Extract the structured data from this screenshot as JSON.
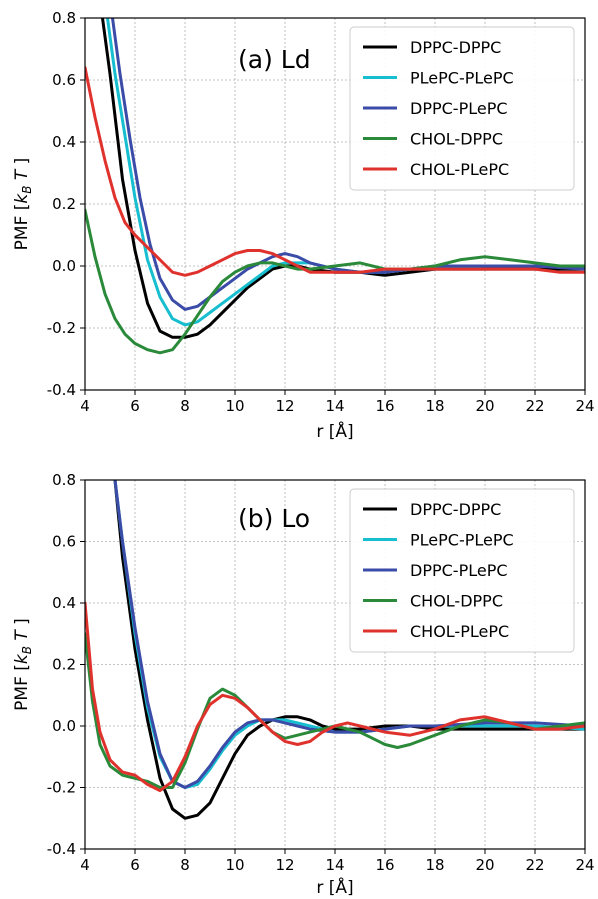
{
  "chart_data": [
    {
      "type": "line",
      "panel_label": "(a) Ld",
      "xlabel": "r [Å]",
      "ylabel": "PMF [k_BT]",
      "xlim": [
        4,
        24
      ],
      "ylim": [
        -0.4,
        0.8
      ],
      "xticks": [
        "4",
        "6",
        "8",
        "10",
        "12",
        "14",
        "16",
        "18",
        "20",
        "22",
        "24"
      ],
      "yticks": [
        "-0.4",
        "-0.2",
        "0.0",
        "0.2",
        "0.4",
        "0.6",
        "0.8"
      ],
      "grid": true,
      "legend_position": "top-right",
      "series": [
        {
          "name": "DPPC-DPPC",
          "color": "#000000",
          "x": [
            4.7,
            5.0,
            5.5,
            6.0,
            6.5,
            7.0,
            7.5,
            8.0,
            8.5,
            9.0,
            9.5,
            10.0,
            10.5,
            11.0,
            11.5,
            12.0,
            12.5,
            13.0,
            14.0,
            15.0,
            16.0,
            17.0,
            18.0,
            20.0,
            22.0,
            24.0
          ],
          "y": [
            0.8,
            0.62,
            0.28,
            0.05,
            -0.12,
            -0.21,
            -0.23,
            -0.23,
            -0.22,
            -0.19,
            -0.15,
            -0.11,
            -0.07,
            -0.04,
            -0.01,
            0.0,
            0.0,
            -0.01,
            -0.02,
            -0.02,
            -0.03,
            -0.02,
            -0.01,
            -0.01,
            -0.01,
            -0.01
          ]
        },
        {
          "name": "PLePC-PLePC",
          "color": "#17becf",
          "x": [
            4.9,
            5.2,
            5.6,
            6.0,
            6.5,
            7.0,
            7.5,
            8.0,
            8.5,
            9.0,
            9.5,
            10.0,
            10.5,
            11.0,
            11.5,
            12.0,
            12.5,
            13.0,
            14.0,
            15.0,
            16.0,
            17.0,
            18.0,
            20.0,
            22.0,
            24.0
          ],
          "y": [
            0.8,
            0.62,
            0.42,
            0.22,
            0.02,
            -0.1,
            -0.17,
            -0.19,
            -0.18,
            -0.15,
            -0.12,
            -0.09,
            -0.06,
            -0.03,
            0.0,
            0.01,
            0.01,
            0.01,
            -0.01,
            -0.02,
            -0.02,
            -0.01,
            -0.01,
            0.0,
            0.0,
            0.0
          ]
        },
        {
          "name": "DPPC-PLePC",
          "color": "#3b4ba8",
          "x": [
            5.1,
            5.4,
            5.8,
            6.2,
            6.6,
            7.0,
            7.5,
            8.0,
            8.5,
            9.0,
            9.5,
            10.0,
            10.5,
            11.0,
            11.5,
            12.0,
            12.5,
            13.0,
            14.0,
            15.0,
            16.0,
            17.0,
            18.0,
            20.0,
            22.0,
            24.0
          ],
          "y": [
            0.8,
            0.62,
            0.41,
            0.22,
            0.07,
            -0.04,
            -0.11,
            -0.14,
            -0.13,
            -0.1,
            -0.07,
            -0.04,
            -0.01,
            0.01,
            0.03,
            0.04,
            0.03,
            0.01,
            -0.01,
            -0.02,
            -0.02,
            -0.01,
            0.0,
            0.0,
            0.0,
            -0.01
          ]
        },
        {
          "name": "CHOL-DPPC",
          "color": "#2a8a3a",
          "x": [
            4.0,
            4.4,
            4.8,
            5.2,
            5.6,
            6.0,
            6.5,
            7.0,
            7.5,
            8.0,
            8.5,
            9.0,
            9.5,
            10.0,
            10.5,
            11.0,
            11.5,
            12.0,
            12.5,
            13.0,
            14.0,
            15.0,
            16.0,
            17.0,
            18.0,
            19.0,
            20.0,
            21.0,
            22.0,
            23.0,
            24.0
          ],
          "y": [
            0.18,
            0.03,
            -0.09,
            -0.17,
            -0.22,
            -0.25,
            -0.27,
            -0.28,
            -0.27,
            -0.22,
            -0.16,
            -0.1,
            -0.05,
            -0.02,
            0.0,
            0.01,
            0.01,
            0.0,
            -0.01,
            -0.01,
            0.0,
            0.01,
            -0.01,
            -0.01,
            0.0,
            0.02,
            0.03,
            0.02,
            0.01,
            0.0,
            0.0
          ]
        },
        {
          "name": "CHOL-PLePC",
          "color": "#e0322d",
          "x": [
            4.0,
            4.4,
            4.8,
            5.2,
            5.6,
            6.0,
            6.5,
            7.0,
            7.5,
            8.0,
            8.5,
            9.0,
            9.5,
            10.0,
            10.5,
            11.0,
            11.5,
            12.0,
            12.5,
            13.0,
            14.0,
            15.0,
            16.0,
            17.0,
            18.0,
            19.0,
            20.0,
            21.0,
            22.0,
            23.0,
            24.0
          ],
          "y": [
            0.64,
            0.48,
            0.34,
            0.22,
            0.14,
            0.1,
            0.06,
            0.02,
            -0.02,
            -0.03,
            -0.02,
            0.0,
            0.02,
            0.04,
            0.05,
            0.05,
            0.04,
            0.02,
            0.0,
            -0.02,
            -0.02,
            -0.02,
            -0.01,
            -0.01,
            -0.01,
            -0.01,
            -0.01,
            -0.01,
            -0.01,
            -0.02,
            -0.02
          ]
        }
      ]
    },
    {
      "type": "line",
      "panel_label": "(b) Lo",
      "xlabel": "r [Å]",
      "ylabel": "PMF [k_BT]",
      "xlim": [
        4,
        24
      ],
      "ylim": [
        -0.4,
        0.8
      ],
      "xticks": [
        "4",
        "6",
        "8",
        "10",
        "12",
        "14",
        "16",
        "18",
        "20",
        "22",
        "24"
      ],
      "yticks": [
        "-0.4",
        "-0.2",
        "0.0",
        "0.2",
        "0.4",
        "0.6",
        "0.8"
      ],
      "grid": true,
      "legend_position": "top-right",
      "series": [
        {
          "name": "DPPC-DPPC",
          "color": "#000000",
          "x": [
            5.2,
            5.5,
            6.0,
            6.5,
            7.0,
            7.5,
            8.0,
            8.5,
            9.0,
            9.5,
            10.0,
            10.5,
            11.0,
            11.5,
            12.0,
            12.5,
            13.0,
            13.5,
            14.0,
            15.0,
            16.0,
            17.0,
            18.0,
            20.0,
            22.0,
            24.0
          ],
          "y": [
            0.8,
            0.55,
            0.25,
            0.02,
            -0.17,
            -0.27,
            -0.3,
            -0.29,
            -0.25,
            -0.17,
            -0.09,
            -0.03,
            0.0,
            0.02,
            0.03,
            0.03,
            0.02,
            0.0,
            -0.01,
            -0.01,
            0.0,
            0.0,
            -0.01,
            -0.01,
            -0.01,
            -0.01
          ]
        },
        {
          "name": "PLePC-PLePC",
          "color": "#17becf",
          "x": [
            5.2,
            5.5,
            6.0,
            6.5,
            7.0,
            7.5,
            8.0,
            8.5,
            9.0,
            9.5,
            10.0,
            10.5,
            11.0,
            11.5,
            12.0,
            12.5,
            13.0,
            14.0,
            15.0,
            16.0,
            17.0,
            18.0,
            20.0,
            22.0,
            24.0
          ],
          "y": [
            0.8,
            0.6,
            0.3,
            0.06,
            -0.1,
            -0.18,
            -0.2,
            -0.19,
            -0.14,
            -0.08,
            -0.03,
            0.0,
            0.02,
            0.02,
            0.02,
            0.01,
            0.0,
            -0.02,
            -0.02,
            -0.01,
            0.0,
            0.0,
            0.0,
            0.0,
            -0.01
          ]
        },
        {
          "name": "DPPC-PLePC",
          "color": "#3b4ba8",
          "x": [
            5.2,
            5.5,
            6.0,
            6.5,
            7.0,
            7.5,
            8.0,
            8.5,
            9.0,
            9.5,
            10.0,
            10.5,
            11.0,
            11.5,
            12.0,
            12.5,
            13.0,
            14.0,
            15.0,
            16.0,
            17.0,
            18.0,
            20.0,
            21.0,
            22.0,
            24.0
          ],
          "y": [
            0.8,
            0.6,
            0.32,
            0.08,
            -0.09,
            -0.18,
            -0.2,
            -0.18,
            -0.13,
            -0.07,
            -0.02,
            0.01,
            0.02,
            0.02,
            0.01,
            0.0,
            -0.01,
            -0.02,
            -0.02,
            -0.01,
            0.0,
            0.0,
            0.01,
            0.01,
            0.01,
            0.0
          ]
        },
        {
          "name": "CHOL-DPPC",
          "color": "#2a8a3a",
          "x": [
            4.0,
            4.3,
            4.6,
            5.0,
            5.5,
            6.0,
            6.5,
            7.0,
            7.5,
            8.0,
            8.5,
            9.0,
            9.5,
            10.0,
            10.5,
            11.0,
            11.5,
            12.0,
            12.5,
            13.0,
            13.5,
            14.0,
            15.0,
            16.0,
            16.5,
            17.0,
            18.0,
            19.0,
            20.0,
            21.0,
            22.0,
            23.0,
            24.0
          ],
          "y": [
            0.3,
            0.08,
            -0.06,
            -0.13,
            -0.16,
            -0.17,
            -0.18,
            -0.2,
            -0.2,
            -0.12,
            -0.01,
            0.09,
            0.12,
            0.1,
            0.06,
            0.02,
            -0.02,
            -0.04,
            -0.03,
            -0.02,
            -0.01,
            0.0,
            -0.02,
            -0.06,
            -0.07,
            -0.06,
            -0.03,
            0.0,
            0.02,
            0.01,
            -0.01,
            0.0,
            0.01
          ]
        },
        {
          "name": "CHOL-PLePC",
          "color": "#e0322d",
          "x": [
            4.0,
            4.3,
            4.6,
            5.0,
            5.5,
            6.0,
            6.5,
            7.0,
            7.5,
            8.0,
            8.5,
            9.0,
            9.5,
            10.0,
            10.5,
            11.0,
            11.5,
            12.0,
            12.5,
            13.0,
            13.5,
            14.0,
            14.5,
            15.0,
            16.0,
            17.0,
            18.0,
            19.0,
            20.0,
            21.0,
            22.0,
            23.0,
            24.0
          ],
          "y": [
            0.4,
            0.12,
            -0.02,
            -0.11,
            -0.15,
            -0.16,
            -0.19,
            -0.21,
            -0.18,
            -0.1,
            0.0,
            0.07,
            0.1,
            0.09,
            0.06,
            0.02,
            -0.02,
            -0.05,
            -0.06,
            -0.05,
            -0.02,
            0.0,
            0.01,
            0.0,
            -0.02,
            -0.03,
            -0.01,
            0.02,
            0.03,
            0.01,
            -0.01,
            -0.01,
            0.0
          ]
        }
      ]
    }
  ]
}
